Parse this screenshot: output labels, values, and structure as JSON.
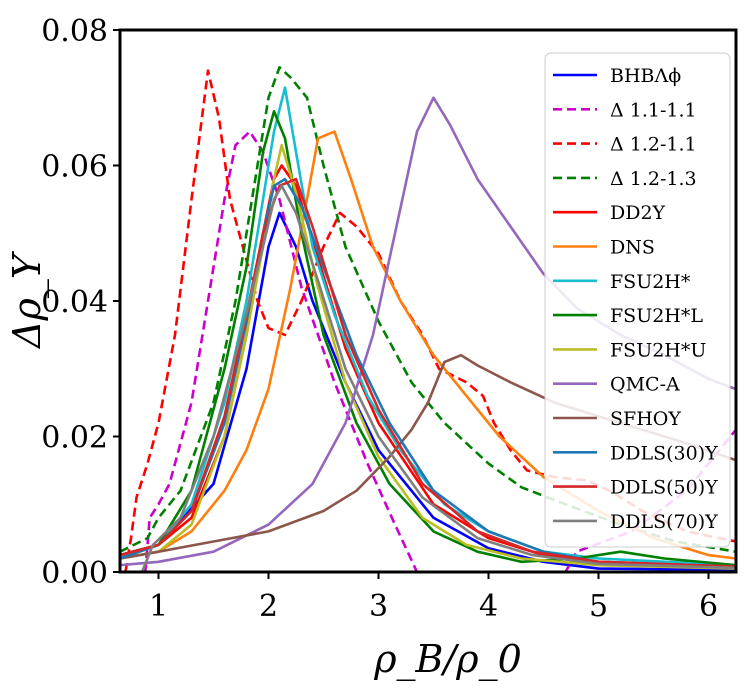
{
  "chart_data": {
    "type": "line",
    "xlabel": "ρ_B/ρ_0",
    "ylabel": "Δρ_Y",
    "xlim": [
      0.65,
      6.25
    ],
    "ylim": [
      0.0,
      0.08
    ],
    "xticks": [
      1,
      2,
      3,
      4,
      5,
      6
    ],
    "xtick_labels": [
      "1",
      "2",
      "3",
      "4",
      "5",
      "6"
    ],
    "yticks": [
      0.0,
      0.02,
      0.04,
      0.06,
      0.08
    ],
    "ytick_labels": [
      "0.00",
      "0.02",
      "0.04",
      "0.06",
      "0.08"
    ],
    "legend_position": "top-right",
    "series": [
      {
        "name": "BHBΛϕ",
        "color": "#0000ff",
        "dash": "solid",
        "points": [
          [
            0.65,
            0.0025
          ],
          [
            1.0,
            0.004
          ],
          [
            1.5,
            0.013
          ],
          [
            1.8,
            0.03
          ],
          [
            2.0,
            0.048
          ],
          [
            2.1,
            0.053
          ],
          [
            2.25,
            0.048
          ],
          [
            2.4,
            0.04
          ],
          [
            2.7,
            0.028
          ],
          [
            3.0,
            0.018
          ],
          [
            3.5,
            0.008
          ],
          [
            4.0,
            0.0035
          ],
          [
            4.5,
            0.0015
          ],
          [
            5.0,
            0.0005
          ],
          [
            6.25,
            0.0003
          ]
        ]
      },
      {
        "name": "Δ 1.1-1.1",
        "color": "#cc00cc",
        "dash": "dashed",
        "points": [
          [
            0.88,
            0.0
          ],
          [
            0.92,
            0.008
          ],
          [
            1.0,
            0.01
          ],
          [
            1.1,
            0.013
          ],
          [
            1.3,
            0.025
          ],
          [
            1.45,
            0.04
          ],
          [
            1.6,
            0.055
          ],
          [
            1.7,
            0.063
          ],
          [
            1.83,
            0.065
          ],
          [
            1.95,
            0.062
          ],
          [
            2.1,
            0.055
          ],
          [
            2.3,
            0.042
          ],
          [
            2.6,
            0.028
          ],
          [
            2.9,
            0.016
          ],
          [
            3.15,
            0.007
          ],
          [
            3.35,
            0.0
          ],
          [
            4.7,
            0.0
          ],
          [
            4.8,
            0.003
          ],
          [
            5.3,
            0.006
          ],
          [
            5.8,
            0.012
          ],
          [
            6.25,
            0.021
          ]
        ]
      },
      {
        "name": "Δ 1.2-1.1",
        "color": "#ff0000",
        "dash": "dashed",
        "points": [
          [
            0.7,
            0.0
          ],
          [
            0.75,
            0.005
          ],
          [
            0.8,
            0.011
          ],
          [
            0.9,
            0.016
          ],
          [
            1.0,
            0.022
          ],
          [
            1.15,
            0.035
          ],
          [
            1.3,
            0.055
          ],
          [
            1.45,
            0.074
          ],
          [
            1.55,
            0.067
          ],
          [
            1.65,
            0.055
          ],
          [
            1.8,
            0.046
          ],
          [
            1.9,
            0.04
          ],
          [
            2.0,
            0.036
          ],
          [
            2.15,
            0.035
          ],
          [
            2.3,
            0.04
          ],
          [
            2.5,
            0.048
          ],
          [
            2.65,
            0.053
          ],
          [
            2.8,
            0.051
          ],
          [
            3.0,
            0.047
          ],
          [
            3.2,
            0.04
          ],
          [
            3.4,
            0.035
          ],
          [
            3.55,
            0.03
          ],
          [
            3.8,
            0.028
          ],
          [
            3.95,
            0.026
          ],
          [
            4.05,
            0.022
          ],
          [
            4.2,
            0.018
          ],
          [
            4.35,
            0.015
          ],
          [
            4.6,
            0.014
          ],
          [
            4.9,
            0.0135
          ],
          [
            5.1,
            0.012
          ],
          [
            5.4,
            0.009
          ],
          [
            5.8,
            0.006
          ],
          [
            6.25,
            0.0045
          ]
        ]
      },
      {
        "name": "Δ 1.2-1.3",
        "color": "#008000",
        "dash": "dashed",
        "points": [
          [
            0.65,
            0.003
          ],
          [
            0.9,
            0.005
          ],
          [
            1.0,
            0.008
          ],
          [
            1.2,
            0.012
          ],
          [
            1.5,
            0.025
          ],
          [
            1.7,
            0.04
          ],
          [
            1.9,
            0.06
          ],
          [
            2.0,
            0.07
          ],
          [
            2.1,
            0.0745
          ],
          [
            2.2,
            0.073
          ],
          [
            2.35,
            0.07
          ],
          [
            2.5,
            0.06
          ],
          [
            2.7,
            0.048
          ],
          [
            3.0,
            0.037
          ],
          [
            3.3,
            0.028
          ],
          [
            3.6,
            0.022
          ],
          [
            4.0,
            0.016
          ],
          [
            4.3,
            0.0125
          ],
          [
            4.7,
            0.01
          ],
          [
            5.2,
            0.007
          ],
          [
            5.7,
            0.0045
          ],
          [
            6.25,
            0.003
          ]
        ]
      },
      {
        "name": "DD2Y",
        "color": "#ff0000",
        "dash": "solid",
        "points": [
          [
            0.65,
            0.0025
          ],
          [
            1.0,
            0.004
          ],
          [
            1.3,
            0.008
          ],
          [
            1.6,
            0.02
          ],
          [
            1.8,
            0.035
          ],
          [
            1.95,
            0.05
          ],
          [
            2.05,
            0.058
          ],
          [
            2.12,
            0.06
          ],
          [
            2.25,
            0.057
          ],
          [
            2.4,
            0.049
          ],
          [
            2.7,
            0.033
          ],
          [
            3.0,
            0.022
          ],
          [
            3.5,
            0.01
          ],
          [
            4.0,
            0.005
          ],
          [
            4.5,
            0.0025
          ],
          [
            5.0,
            0.0015
          ],
          [
            6.25,
            0.0008
          ]
        ]
      },
      {
        "name": "DNS",
        "color": "#ff7f0e",
        "dash": "solid",
        "points": [
          [
            0.65,
            0.002
          ],
          [
            1.0,
            0.003
          ],
          [
            1.3,
            0.006
          ],
          [
            1.6,
            0.012
          ],
          [
            1.8,
            0.018
          ],
          [
            2.0,
            0.027
          ],
          [
            2.2,
            0.042
          ],
          [
            2.35,
            0.055
          ],
          [
            2.45,
            0.064
          ],
          [
            2.6,
            0.065
          ],
          [
            2.75,
            0.058
          ],
          [
            2.95,
            0.048
          ],
          [
            3.2,
            0.04
          ],
          [
            3.5,
            0.032
          ],
          [
            3.8,
            0.026
          ],
          [
            4.1,
            0.02
          ],
          [
            4.5,
            0.014
          ],
          [
            5.0,
            0.009
          ],
          [
            5.5,
            0.005
          ],
          [
            6.0,
            0.0025
          ],
          [
            6.25,
            0.002
          ]
        ]
      },
      {
        "name": "FSU2H*",
        "color": "#17becf",
        "dash": "solid",
        "points": [
          [
            0.65,
            0.002
          ],
          [
            1.0,
            0.004
          ],
          [
            1.3,
            0.01
          ],
          [
            1.6,
            0.025
          ],
          [
            1.8,
            0.04
          ],
          [
            1.95,
            0.055
          ],
          [
            2.05,
            0.065
          ],
          [
            2.15,
            0.0715
          ],
          [
            2.25,
            0.062
          ],
          [
            2.4,
            0.048
          ],
          [
            2.6,
            0.038
          ],
          [
            2.9,
            0.026
          ],
          [
            3.2,
            0.018
          ],
          [
            3.6,
            0.01
          ],
          [
            4.0,
            0.006
          ],
          [
            4.5,
            0.003
          ],
          [
            5.0,
            0.002
          ],
          [
            6.25,
            0.001
          ]
        ]
      },
      {
        "name": "FSU2H*L",
        "color": "#008000",
        "dash": "solid",
        "points": [
          [
            0.65,
            0.0025
          ],
          [
            1.0,
            0.004
          ],
          [
            1.3,
            0.012
          ],
          [
            1.6,
            0.03
          ],
          [
            1.8,
            0.045
          ],
          [
            1.95,
            0.062
          ],
          [
            2.05,
            0.068
          ],
          [
            2.15,
            0.064
          ],
          [
            2.3,
            0.05
          ],
          [
            2.5,
            0.035
          ],
          [
            2.8,
            0.022
          ],
          [
            3.1,
            0.013
          ],
          [
            3.5,
            0.006
          ],
          [
            3.9,
            0.003
          ],
          [
            4.3,
            0.0015
          ],
          [
            4.8,
            0.002
          ],
          [
            5.2,
            0.003
          ],
          [
            5.6,
            0.002
          ],
          [
            6.25,
            0.001
          ]
        ]
      },
      {
        "name": "FSU2H*U",
        "color": "#bcbd22",
        "dash": "solid",
        "points": [
          [
            0.65,
            0.002
          ],
          [
            1.0,
            0.003
          ],
          [
            1.3,
            0.007
          ],
          [
            1.6,
            0.02
          ],
          [
            1.8,
            0.035
          ],
          [
            1.95,
            0.048
          ],
          [
            2.05,
            0.058
          ],
          [
            2.12,
            0.063
          ],
          [
            2.25,
            0.056
          ],
          [
            2.45,
            0.042
          ],
          [
            2.7,
            0.028
          ],
          [
            3.0,
            0.017
          ],
          [
            3.4,
            0.008
          ],
          [
            3.8,
            0.004
          ],
          [
            4.3,
            0.002
          ],
          [
            5.0,
            0.001
          ],
          [
            6.25,
            0.0005
          ]
        ]
      },
      {
        "name": "QMC-A",
        "color": "#9467bd",
        "dash": "solid",
        "points": [
          [
            0.65,
            0.001
          ],
          [
            1.0,
            0.0015
          ],
          [
            1.5,
            0.003
          ],
          [
            2.0,
            0.007
          ],
          [
            2.4,
            0.013
          ],
          [
            2.7,
            0.022
          ],
          [
            2.95,
            0.035
          ],
          [
            3.15,
            0.05
          ],
          [
            3.35,
            0.065
          ],
          [
            3.5,
            0.07
          ],
          [
            3.65,
            0.066
          ],
          [
            3.9,
            0.058
          ],
          [
            4.2,
            0.051
          ],
          [
            4.5,
            0.044
          ],
          [
            4.8,
            0.039
          ],
          [
            5.2,
            0.035
          ],
          [
            5.6,
            0.032
          ],
          [
            6.0,
            0.0285
          ],
          [
            6.25,
            0.027
          ]
        ]
      },
      {
        "name": "SFHOY",
        "color": "#8c564b",
        "dash": "solid",
        "points": [
          [
            0.65,
            0.002
          ],
          [
            1.0,
            0.003
          ],
          [
            1.5,
            0.0045
          ],
          [
            2.0,
            0.006
          ],
          [
            2.5,
            0.009
          ],
          [
            2.8,
            0.012
          ],
          [
            3.1,
            0.017
          ],
          [
            3.3,
            0.021
          ],
          [
            3.45,
            0.025
          ],
          [
            3.6,
            0.031
          ],
          [
            3.75,
            0.032
          ],
          [
            3.9,
            0.0305
          ],
          [
            4.2,
            0.028
          ],
          [
            4.6,
            0.025
          ],
          [
            5.0,
            0.023
          ],
          [
            5.4,
            0.021
          ],
          [
            5.8,
            0.019
          ],
          [
            6.25,
            0.0165
          ]
        ]
      },
      {
        "name": "DDLS(30)Y",
        "color": "#1f77b4",
        "dash": "solid",
        "points": [
          [
            0.65,
            0.002
          ],
          [
            1.0,
            0.004
          ],
          [
            1.3,
            0.009
          ],
          [
            1.6,
            0.022
          ],
          [
            1.8,
            0.037
          ],
          [
            1.95,
            0.05
          ],
          [
            2.05,
            0.057
          ],
          [
            2.15,
            0.058
          ],
          [
            2.3,
            0.054
          ],
          [
            2.5,
            0.045
          ],
          [
            2.8,
            0.032
          ],
          [
            3.1,
            0.022
          ],
          [
            3.5,
            0.012
          ],
          [
            4.0,
            0.006
          ],
          [
            4.5,
            0.003
          ],
          [
            5.0,
            0.0015
          ],
          [
            6.25,
            0.0008
          ]
        ]
      },
      {
        "name": "DDLS(50)Y",
        "color": "#d62728",
        "dash": "solid",
        "points": [
          [
            0.65,
            0.0025
          ],
          [
            1.0,
            0.004
          ],
          [
            1.3,
            0.009
          ],
          [
            1.6,
            0.023
          ],
          [
            1.8,
            0.038
          ],
          [
            1.95,
            0.05
          ],
          [
            2.1,
            0.057
          ],
          [
            2.25,
            0.058
          ],
          [
            2.4,
            0.051
          ],
          [
            2.7,
            0.035
          ],
          [
            3.0,
            0.024
          ],
          [
            3.4,
            0.013
          ],
          [
            3.9,
            0.006
          ],
          [
            4.4,
            0.003
          ],
          [
            5.0,
            0.0015
          ],
          [
            6.25,
            0.0008
          ]
        ]
      },
      {
        "name": "DDLS(70)Y",
        "color": "#7f7f7f",
        "dash": "solid",
        "points": [
          [
            0.85,
            0.0
          ],
          [
            0.95,
            0.004
          ],
          [
            1.2,
            0.008
          ],
          [
            1.5,
            0.02
          ],
          [
            1.75,
            0.035
          ],
          [
            1.95,
            0.048
          ],
          [
            2.05,
            0.055
          ],
          [
            2.12,
            0.057
          ],
          [
            2.25,
            0.053
          ],
          [
            2.45,
            0.043
          ],
          [
            2.7,
            0.03
          ],
          [
            3.0,
            0.02
          ],
          [
            3.4,
            0.011
          ],
          [
            3.9,
            0.005
          ],
          [
            4.4,
            0.0025
          ],
          [
            5.0,
            0.0012
          ],
          [
            6.25,
            0.0006
          ]
        ]
      }
    ]
  }
}
